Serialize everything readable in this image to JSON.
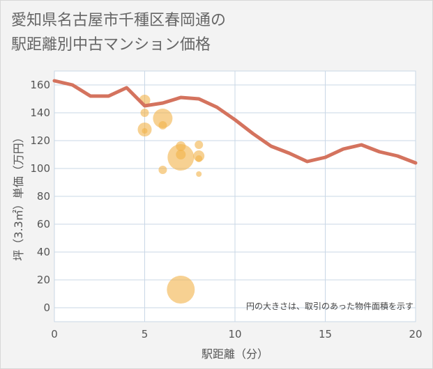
{
  "title_lines": [
    "愛知県名古屋市千種区春岡通の",
    "駅距離別中古マンション価格"
  ],
  "chart_data": {
    "type": "scatter",
    "title": "愛知県名古屋市千種区春岡通の駅距離別中古マンション価格",
    "xlabel": "駅距離（分）",
    "ylabel": "坪（3.3㎡）単価（万円）",
    "xlim": [
      0,
      20
    ],
    "ylim": [
      -10,
      170
    ],
    "x_ticks": [
      0,
      5,
      10,
      15,
      20
    ],
    "y_ticks": [
      0,
      20,
      40,
      60,
      80,
      100,
      120,
      140,
      160
    ],
    "grid": true,
    "note": "円の大きさは、取引のあった物件面積を示す",
    "colors": {
      "line": "#d4735e",
      "bubble": "#f2b24a",
      "grid": "#c9d7e6",
      "background": "#ffffff"
    },
    "line_series": {
      "x": [
        0,
        1,
        2,
        3,
        4,
        5,
        6,
        7,
        8,
        9,
        10,
        11,
        12,
        13,
        14,
        15,
        16,
        17,
        18,
        19,
        20
      ],
      "y": [
        163,
        160,
        152,
        152,
        158,
        145,
        147,
        151,
        150,
        144,
        135,
        125,
        116,
        111,
        105,
        108,
        114,
        117,
        112,
        109,
        104
      ]
    },
    "bubbles": [
      {
        "x": 5,
        "y": 149,
        "size": 8
      },
      {
        "x": 5,
        "y": 140,
        "size": 6
      },
      {
        "x": 5,
        "y": 128,
        "size": 10
      },
      {
        "x": 5,
        "y": 127,
        "size": 4
      },
      {
        "x": 6,
        "y": 136,
        "size": 14
      },
      {
        "x": 6,
        "y": 131,
        "size": 6
      },
      {
        "x": 6,
        "y": 99,
        "size": 6
      },
      {
        "x": 7,
        "y": 108,
        "size": 19
      },
      {
        "x": 7,
        "y": 116,
        "size": 7
      },
      {
        "x": 7,
        "y": 110,
        "size": 7
      },
      {
        "x": 7,
        "y": 13,
        "size": 20
      },
      {
        "x": 8,
        "y": 117,
        "size": 6
      },
      {
        "x": 8,
        "y": 109,
        "size": 8
      },
      {
        "x": 8,
        "y": 107,
        "size": 5
      },
      {
        "x": 8,
        "y": 96,
        "size": 4
      }
    ]
  }
}
